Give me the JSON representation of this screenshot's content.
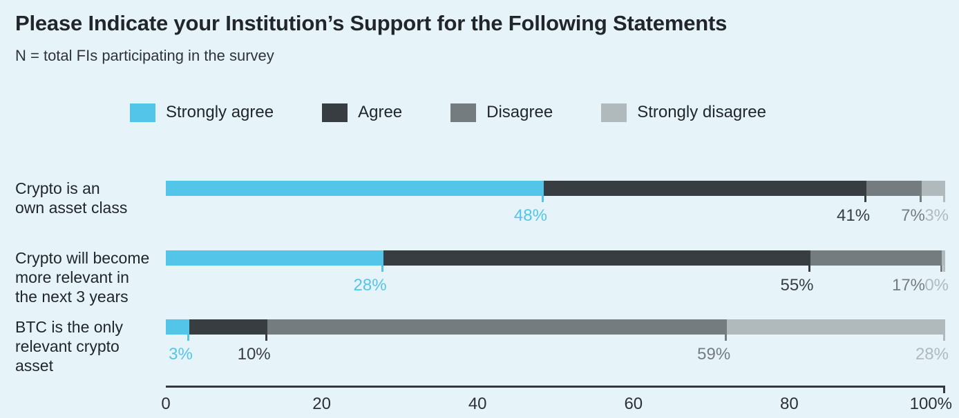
{
  "header": {
    "title": "Please Indicate your Institution’s Support for the Following Statements",
    "subtitle": "N = total FIs participating in the survey"
  },
  "colors": {
    "background": "#e6f4fa",
    "strongly_agree": "#52c5e8",
    "agree": "#383d42",
    "disagree": "#757c80",
    "strongly_disagree": "#b0babd",
    "axis": "#33383d",
    "title_text": "#21262b"
  },
  "chart_data": {
    "type": "bar",
    "orientation": "horizontal",
    "stacked": true,
    "title": "Please Indicate your Institution’s Support for the Following Statements",
    "subtitle": "N = total FIs participating in the survey",
    "categories": [
      "Crypto is an\nown asset class",
      "Crypto will become\nmore relevant in\nthe next 3 years",
      "BTC is the only\nrelevant crypto\nasset"
    ],
    "series": [
      {
        "name": "Strongly agree",
        "color": "#52c5e8",
        "values": [
          48,
          28,
          3
        ]
      },
      {
        "name": "Agree",
        "color": "#383d42",
        "values": [
          41,
          55,
          10
        ]
      },
      {
        "name": "Disagree",
        "color": "#757c80",
        "values": [
          7,
          17,
          59
        ]
      },
      {
        "name": "Strongly disagree",
        "color": "#b0babd",
        "values": [
          3,
          0,
          28
        ]
      }
    ],
    "value_suffix": "%",
    "data_labels": [
      [
        "48%",
        "41%",
        "7%",
        "3%"
      ],
      [
        "28%",
        "55%",
        "17%",
        "0%"
      ],
      [
        "3%",
        "10%",
        "59%",
        "28%"
      ]
    ],
    "xlim": [
      0,
      100
    ],
    "x_ticks": [
      "0",
      "20",
      "40",
      "60",
      "80",
      "100%"
    ],
    "legend_position": "top",
    "grid": false
  }
}
